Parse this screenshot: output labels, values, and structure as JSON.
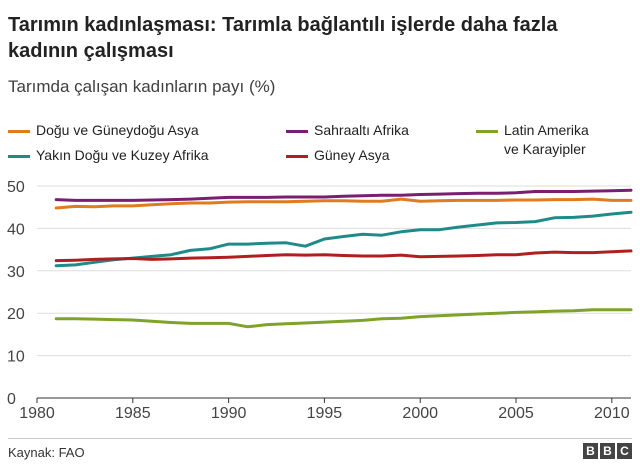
{
  "header": {
    "title": "Tarımın kadınlaşması: Tarımla bağlantılı işlerde daha fazla kadının çalışması",
    "subtitle": "Tarımda çalışan kadınların payı (%)"
  },
  "footer": {
    "source": "Kaynak: FAO",
    "logo_letters": [
      "B",
      "B",
      "C"
    ]
  },
  "chart_data": {
    "type": "line",
    "title": "Tarımın kadınlaşması: Tarımla bağlantılı işlerde daha fazla kadının çalışması",
    "ylabel": "Tarımda çalışan kadınların payı (%)",
    "xlim": [
      1980,
      2011
    ],
    "ylim": [
      0,
      50
    ],
    "xticks": [
      1980,
      1985,
      1990,
      1995,
      2000,
      2005,
      2010
    ],
    "yticks": [
      0,
      10,
      20,
      30,
      40,
      50
    ],
    "grid": true,
    "legend_position": "top",
    "x": [
      1981,
      1982,
      1983,
      1984,
      1985,
      1986,
      1987,
      1988,
      1989,
      1990,
      1991,
      1992,
      1993,
      1994,
      1995,
      1996,
      1997,
      1998,
      1999,
      2000,
      2001,
      2002,
      2003,
      2004,
      2005,
      2006,
      2007,
      2008,
      2009,
      2010,
      2011
    ],
    "series": [
      {
        "name": "Doğu ve Güneydoğu Asya",
        "color": "#e07b1f",
        "values": [
          44.8,
          45.2,
          45.1,
          45.3,
          45.3,
          45.6,
          45.8,
          46.0,
          46.0,
          46.2,
          46.3,
          46.3,
          46.3,
          46.4,
          46.5,
          46.5,
          46.4,
          46.4,
          46.9,
          46.4,
          46.5,
          46.6,
          46.6,
          46.6,
          46.7,
          46.7,
          46.8,
          46.8,
          46.9,
          46.6,
          46.6
        ]
      },
      {
        "name": "Sahraaltı Afrika",
        "color": "#7a1f6f",
        "values": [
          46.8,
          46.6,
          46.6,
          46.6,
          46.6,
          46.7,
          46.8,
          46.9,
          47.1,
          47.3,
          47.3,
          47.3,
          47.4,
          47.4,
          47.4,
          47.6,
          47.7,
          47.8,
          47.8,
          48.0,
          48.1,
          48.2,
          48.3,
          48.3,
          48.4,
          48.7,
          48.7,
          48.7,
          48.8,
          48.9,
          49.0
        ]
      },
      {
        "name": "Latin Amerika\nve Karayipler",
        "color": "#7fa32a",
        "values": [
          18.7,
          18.7,
          18.6,
          18.5,
          18.4,
          18.1,
          17.8,
          17.6,
          17.6,
          17.6,
          16.8,
          17.3,
          17.5,
          17.7,
          17.9,
          18.1,
          18.3,
          18.7,
          18.8,
          19.2,
          19.4,
          19.6,
          19.8,
          20.0,
          20.2,
          20.3,
          20.5,
          20.6,
          20.8,
          20.8,
          20.8
        ]
      },
      {
        "name": "Yakın Doğu ve Kuzey Afrika",
        "color": "#1f8a8a",
        "values": [
          31.2,
          31.4,
          32.0,
          32.6,
          33.0,
          33.4,
          33.8,
          34.8,
          35.2,
          36.3,
          36.3,
          36.5,
          36.6,
          35.8,
          37.5,
          38.1,
          38.6,
          38.4,
          39.2,
          39.7,
          39.7,
          40.3,
          40.8,
          41.3,
          41.4,
          41.6,
          42.5,
          42.6,
          42.9,
          43.4,
          43.8
        ]
      },
      {
        "name": "Güney Asya",
        "color": "#b01f1f",
        "values": [
          32.4,
          32.5,
          32.7,
          32.8,
          32.9,
          32.7,
          32.8,
          33.0,
          33.1,
          33.2,
          33.4,
          33.6,
          33.8,
          33.7,
          33.8,
          33.6,
          33.5,
          33.5,
          33.7,
          33.3,
          33.4,
          33.5,
          33.6,
          33.8,
          33.8,
          34.2,
          34.4,
          34.3,
          34.3,
          34.5,
          34.7
        ]
      }
    ]
  }
}
